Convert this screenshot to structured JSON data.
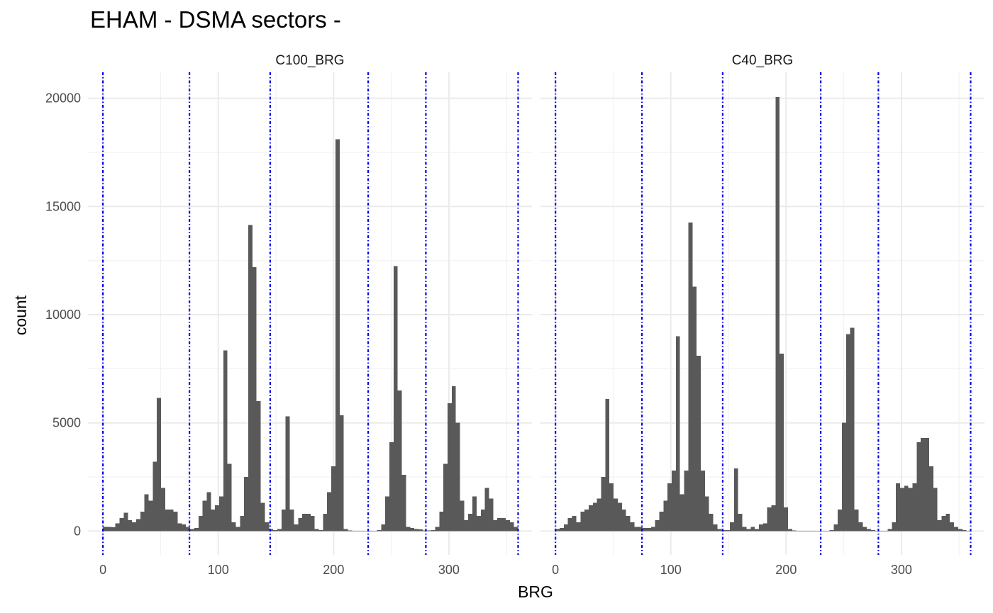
{
  "chart_data": {
    "type": "bar",
    "subtype": "faceted-histogram",
    "title": "EHAM - DSMA sectors -",
    "xlabel": "BRG",
    "ylabel": "count",
    "xlim": [
      -13,
      372
    ],
    "ylim": [
      -1100,
      21200
    ],
    "x_ticks": [
      0,
      100,
      200,
      300
    ],
    "y_ticks": [
      0,
      5000,
      10000,
      15000,
      20000
    ],
    "grid": true,
    "theme": "minimal",
    "bin_width": 3.6,
    "bar_color": "#595959",
    "sector_line_color": "#0000ee",
    "sector_bounds": [
      0,
      75,
      145,
      230,
      280,
      360
    ],
    "facets": [
      {
        "label": "C100_BRG",
        "bins": [
          {
            "x": 1.8,
            "count": 200
          },
          {
            "x": 5.4,
            "count": 200
          },
          {
            "x": 9.0,
            "count": 180
          },
          {
            "x": 12.6,
            "count": 350
          },
          {
            "x": 16.2,
            "count": 600
          },
          {
            "x": 19.8,
            "count": 850
          },
          {
            "x": 23.4,
            "count": 500
          },
          {
            "x": 27.0,
            "count": 400
          },
          {
            "x": 30.6,
            "count": 550
          },
          {
            "x": 34.2,
            "count": 900
          },
          {
            "x": 37.8,
            "count": 1700
          },
          {
            "x": 41.4,
            "count": 1400
          },
          {
            "x": 45.0,
            "count": 3200
          },
          {
            "x": 48.6,
            "count": 6150
          },
          {
            "x": 52.2,
            "count": 2000
          },
          {
            "x": 55.8,
            "count": 1000
          },
          {
            "x": 59.4,
            "count": 1000
          },
          {
            "x": 63.0,
            "count": 900
          },
          {
            "x": 66.6,
            "count": 350
          },
          {
            "x": 70.2,
            "count": 300
          },
          {
            "x": 73.8,
            "count": 200
          },
          {
            "x": 77.4,
            "count": 100
          },
          {
            "x": 81.0,
            "count": 150
          },
          {
            "x": 84.6,
            "count": 700
          },
          {
            "x": 88.2,
            "count": 1400
          },
          {
            "x": 91.8,
            "count": 1800
          },
          {
            "x": 95.4,
            "count": 1000
          },
          {
            "x": 99.0,
            "count": 1200
          },
          {
            "x": 102.6,
            "count": 1600
          },
          {
            "x": 106.2,
            "count": 8350
          },
          {
            "x": 109.8,
            "count": 3100
          },
          {
            "x": 113.4,
            "count": 400
          },
          {
            "x": 117.0,
            "count": 200
          },
          {
            "x": 120.6,
            "count": 700
          },
          {
            "x": 124.2,
            "count": 2500
          },
          {
            "x": 127.8,
            "count": 14150
          },
          {
            "x": 131.4,
            "count": 12200
          },
          {
            "x": 135.0,
            "count": 6000
          },
          {
            "x": 138.6,
            "count": 1300
          },
          {
            "x": 142.2,
            "count": 400
          },
          {
            "x": 145.8,
            "count": 100
          },
          {
            "x": 149.4,
            "count": 50
          },
          {
            "x": 153.0,
            "count": 100
          },
          {
            "x": 156.6,
            "count": 1000
          },
          {
            "x": 160.2,
            "count": 5300
          },
          {
            "x": 163.8,
            "count": 1000
          },
          {
            "x": 167.4,
            "count": 300
          },
          {
            "x": 171.0,
            "count": 600
          },
          {
            "x": 174.6,
            "count": 800
          },
          {
            "x": 178.2,
            "count": 800
          },
          {
            "x": 181.8,
            "count": 700
          },
          {
            "x": 185.4,
            "count": 100
          },
          {
            "x": 189.0,
            "count": 50
          },
          {
            "x": 192.6,
            "count": 800
          },
          {
            "x": 196.2,
            "count": 1800
          },
          {
            "x": 199.8,
            "count": 3000
          },
          {
            "x": 203.4,
            "count": 18100
          },
          {
            "x": 207.0,
            "count": 5350
          },
          {
            "x": 210.6,
            "count": 100
          },
          {
            "x": 214.2,
            "count": 30
          },
          {
            "x": 217.8,
            "count": 10
          },
          {
            "x": 221.4,
            "count": 10
          },
          {
            "x": 225.0,
            "count": 10
          },
          {
            "x": 228.6,
            "count": 10
          },
          {
            "x": 232.2,
            "count": 10
          },
          {
            "x": 235.8,
            "count": 20
          },
          {
            "x": 239.4,
            "count": 50
          },
          {
            "x": 243.0,
            "count": 300
          },
          {
            "x": 246.6,
            "count": 1600
          },
          {
            "x": 250.2,
            "count": 4100
          },
          {
            "x": 253.8,
            "count": 12250
          },
          {
            "x": 257.4,
            "count": 6500
          },
          {
            "x": 261.0,
            "count": 2600
          },
          {
            "x": 264.6,
            "count": 200
          },
          {
            "x": 268.2,
            "count": 150
          },
          {
            "x": 271.8,
            "count": 100
          },
          {
            "x": 275.4,
            "count": 80
          },
          {
            "x": 279.0,
            "count": 30
          },
          {
            "x": 282.6,
            "count": 30
          },
          {
            "x": 286.2,
            "count": 50
          },
          {
            "x": 289.8,
            "count": 200
          },
          {
            "x": 293.4,
            "count": 900
          },
          {
            "x": 297.0,
            "count": 3100
          },
          {
            "x": 300.6,
            "count": 5900
          },
          {
            "x": 304.2,
            "count": 6700
          },
          {
            "x": 307.8,
            "count": 5000
          },
          {
            "x": 311.4,
            "count": 1400
          },
          {
            "x": 315.0,
            "count": 500
          },
          {
            "x": 318.6,
            "count": 800
          },
          {
            "x": 322.2,
            "count": 1600
          },
          {
            "x": 325.8,
            "count": 700
          },
          {
            "x": 329.4,
            "count": 1000
          },
          {
            "x": 333.0,
            "count": 2000
          },
          {
            "x": 336.6,
            "count": 1500
          },
          {
            "x": 340.2,
            "count": 500
          },
          {
            "x": 343.8,
            "count": 600
          },
          {
            "x": 347.4,
            "count": 600
          },
          {
            "x": 351.0,
            "count": 500
          },
          {
            "x": 354.6,
            "count": 400
          },
          {
            "x": 358.2,
            "count": 200
          }
        ]
      },
      {
        "label": "C40_BRG",
        "bins": [
          {
            "x": 1.8,
            "count": 100
          },
          {
            "x": 5.4,
            "count": 150
          },
          {
            "x": 9.0,
            "count": 300
          },
          {
            "x": 12.6,
            "count": 600
          },
          {
            "x": 16.2,
            "count": 700
          },
          {
            "x": 19.8,
            "count": 400
          },
          {
            "x": 23.4,
            "count": 900
          },
          {
            "x": 27.0,
            "count": 1000
          },
          {
            "x": 30.6,
            "count": 1200
          },
          {
            "x": 34.2,
            "count": 1300
          },
          {
            "x": 37.8,
            "count": 1500
          },
          {
            "x": 41.4,
            "count": 2500
          },
          {
            "x": 45.0,
            "count": 6100
          },
          {
            "x": 48.6,
            "count": 2200
          },
          {
            "x": 52.2,
            "count": 1500
          },
          {
            "x": 55.8,
            "count": 1300
          },
          {
            "x": 59.4,
            "count": 1000
          },
          {
            "x": 63.0,
            "count": 700
          },
          {
            "x": 66.6,
            "count": 400
          },
          {
            "x": 70.2,
            "count": 200
          },
          {
            "x": 73.8,
            "count": 200
          },
          {
            "x": 77.4,
            "count": 150
          },
          {
            "x": 81.0,
            "count": 150
          },
          {
            "x": 84.6,
            "count": 200
          },
          {
            "x": 88.2,
            "count": 500
          },
          {
            "x": 91.8,
            "count": 900
          },
          {
            "x": 95.4,
            "count": 1400
          },
          {
            "x": 99.0,
            "count": 2200
          },
          {
            "x": 102.6,
            "count": 2800
          },
          {
            "x": 106.2,
            "count": 9000
          },
          {
            "x": 109.8,
            "count": 1700
          },
          {
            "x": 113.4,
            "count": 2800
          },
          {
            "x": 117.0,
            "count": 14250
          },
          {
            "x": 120.6,
            "count": 11300
          },
          {
            "x": 124.2,
            "count": 8100
          },
          {
            "x": 127.8,
            "count": 2800
          },
          {
            "x": 131.4,
            "count": 1600
          },
          {
            "x": 135.0,
            "count": 800
          },
          {
            "x": 138.6,
            "count": 300
          },
          {
            "x": 142.2,
            "count": 100
          },
          {
            "x": 145.8,
            "count": 50
          },
          {
            "x": 149.4,
            "count": 50
          },
          {
            "x": 153.0,
            "count": 400
          },
          {
            "x": 156.6,
            "count": 2900
          },
          {
            "x": 160.2,
            "count": 800
          },
          {
            "x": 163.8,
            "count": 200
          },
          {
            "x": 167.4,
            "count": 100
          },
          {
            "x": 171.0,
            "count": 200
          },
          {
            "x": 174.6,
            "count": 100
          },
          {
            "x": 178.2,
            "count": 300
          },
          {
            "x": 181.8,
            "count": 350
          },
          {
            "x": 185.4,
            "count": 1100
          },
          {
            "x": 189.0,
            "count": 1200
          },
          {
            "x": 192.6,
            "count": 20050
          },
          {
            "x": 196.2,
            "count": 8200
          },
          {
            "x": 199.8,
            "count": 1100
          },
          {
            "x": 203.4,
            "count": 100
          },
          {
            "x": 207.0,
            "count": 30
          },
          {
            "x": 210.6,
            "count": 10
          },
          {
            "x": 214.2,
            "count": 10
          },
          {
            "x": 217.8,
            "count": 10
          },
          {
            "x": 221.4,
            "count": 10
          },
          {
            "x": 225.0,
            "count": 10
          },
          {
            "x": 228.6,
            "count": 10
          },
          {
            "x": 232.2,
            "count": 10
          },
          {
            "x": 235.8,
            "count": 10
          },
          {
            "x": 239.4,
            "count": 50
          },
          {
            "x": 243.0,
            "count": 300
          },
          {
            "x": 246.6,
            "count": 1000
          },
          {
            "x": 250.2,
            "count": 5000
          },
          {
            "x": 253.8,
            "count": 9100
          },
          {
            "x": 257.4,
            "count": 9400
          },
          {
            "x": 261.0,
            "count": 1000
          },
          {
            "x": 264.6,
            "count": 400
          },
          {
            "x": 268.2,
            "count": 200
          },
          {
            "x": 271.8,
            "count": 100
          },
          {
            "x": 275.4,
            "count": 50
          },
          {
            "x": 279.0,
            "count": 20
          },
          {
            "x": 282.6,
            "count": 10
          },
          {
            "x": 286.2,
            "count": 20
          },
          {
            "x": 289.8,
            "count": 100
          },
          {
            "x": 293.4,
            "count": 400
          },
          {
            "x": 297.0,
            "count": 2200
          },
          {
            "x": 300.6,
            "count": 2000
          },
          {
            "x": 304.2,
            "count": 2100
          },
          {
            "x": 307.8,
            "count": 2000
          },
          {
            "x": 311.4,
            "count": 2200
          },
          {
            "x": 315.0,
            "count": 4100
          },
          {
            "x": 318.6,
            "count": 4300
          },
          {
            "x": 322.2,
            "count": 4300
          },
          {
            "x": 325.8,
            "count": 3000
          },
          {
            "x": 329.4,
            "count": 2000
          },
          {
            "x": 333.0,
            "count": 500
          },
          {
            "x": 336.6,
            "count": 700
          },
          {
            "x": 340.2,
            "count": 800
          },
          {
            "x": 343.8,
            "count": 400
          },
          {
            "x": 347.4,
            "count": 200
          },
          {
            "x": 351.0,
            "count": 100
          },
          {
            "x": 354.6,
            "count": 50
          },
          {
            "x": 358.2,
            "count": 20
          }
        ]
      }
    ]
  }
}
